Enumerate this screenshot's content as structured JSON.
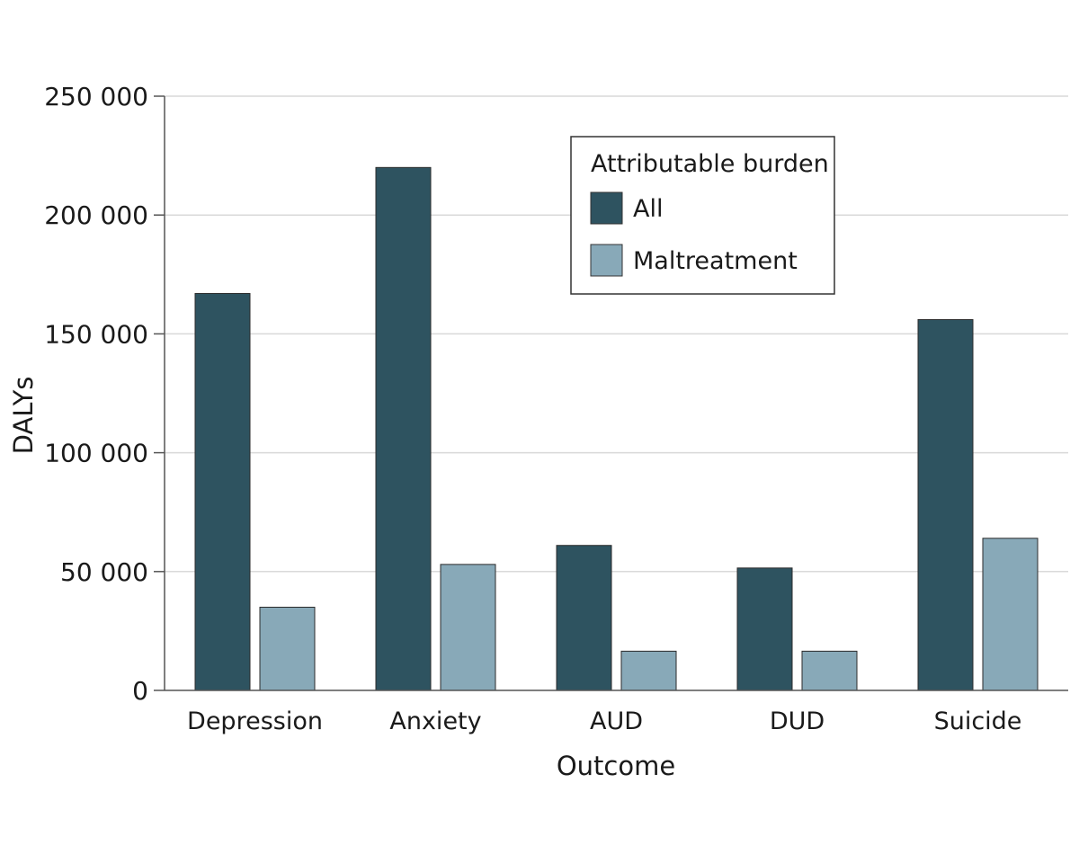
{
  "chart_data": {
    "type": "bar",
    "title": "",
    "xlabel": "Outcome",
    "ylabel": "DALYs",
    "categories": [
      "Depression",
      "Anxiety",
      "AUD",
      "DUD",
      "Suicide"
    ],
    "series": [
      {
        "name": "All",
        "color": "#2e5360",
        "values": [
          167000,
          220000,
          61000,
          51500,
          156000
        ]
      },
      {
        "name": "Maltreatment",
        "color": "#88a9b8",
        "values": [
          35000,
          53000,
          16500,
          16500,
          64000
        ]
      }
    ],
    "ylim": [
      0,
      250000
    ],
    "yticks": [
      0,
      50000,
      100000,
      150000,
      200000,
      250000
    ],
    "ytick_labels": [
      "0",
      "50 000",
      "100 000",
      "150 000",
      "200 000",
      "250 000"
    ],
    "grid": true,
    "legend": {
      "title": "Attributable burden",
      "placement": "top-right"
    }
  }
}
